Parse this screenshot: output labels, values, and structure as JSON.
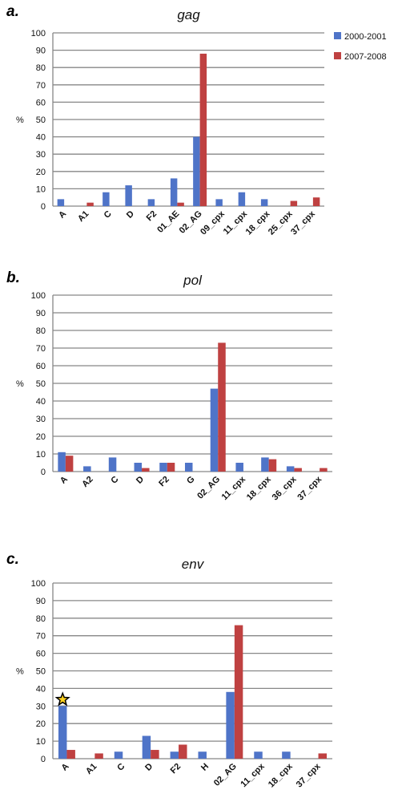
{
  "legend": [
    {
      "name": "2000-2001",
      "color": "#4f74c8"
    },
    {
      "name": "2007-2008",
      "color": "#bf4141"
    }
  ],
  "chart_data": [
    {
      "type": "bar",
      "panel_label": "a.",
      "title": "gag",
      "ylabel": "%",
      "ylim": [
        0,
        100
      ],
      "yticks": [
        0,
        10,
        20,
        30,
        40,
        50,
        60,
        70,
        80,
        90,
        100
      ],
      "grid": true,
      "legend_position": "top-right",
      "categories": [
        "A",
        "A1",
        "C",
        "D",
        "F2",
        "01_AE",
        "02_AG",
        "09_cpx",
        "11_cpx",
        "18_cpx",
        "25_cpx",
        "37_cpx"
      ],
      "series": [
        {
          "name": "2000-2001",
          "values": [
            4,
            0,
            8,
            12,
            4,
            16,
            40,
            4,
            8,
            4,
            0,
            0
          ]
        },
        {
          "name": "2007-2008",
          "values": [
            0,
            2,
            0,
            0,
            0,
            2,
            88,
            0,
            0,
            0,
            3,
            5
          ]
        }
      ]
    },
    {
      "type": "bar",
      "panel_label": "b.",
      "title": "pol",
      "ylabel": "%",
      "ylim": [
        0,
        100
      ],
      "yticks": [
        0,
        10,
        20,
        30,
        40,
        50,
        60,
        70,
        80,
        90,
        100
      ],
      "grid": true,
      "categories": [
        "A",
        "A2",
        "C",
        "D",
        "F2",
        "G",
        "02_AG",
        "11_cpx",
        "18_cpx",
        "36_cpx",
        "37_cpx"
      ],
      "series": [
        {
          "name": "2000-2001",
          "values": [
            11,
            3,
            8,
            5,
            5,
            5,
            47,
            5,
            8,
            3,
            0
          ]
        },
        {
          "name": "2007-2008",
          "values": [
            9,
            0,
            0,
            2,
            5,
            0,
            73,
            0,
            7,
            2,
            2
          ]
        }
      ]
    },
    {
      "type": "bar",
      "panel_label": "c.",
      "title": "env",
      "ylabel": "%",
      "ylim": [
        0,
        100
      ],
      "yticks": [
        0,
        10,
        20,
        30,
        40,
        50,
        60,
        70,
        80,
        90,
        100
      ],
      "grid": true,
      "categories": [
        "A",
        "A1",
        "C",
        "D",
        "F2",
        "H",
        "02_AG",
        "11_cpx",
        "18_cpx",
        "37_cpx"
      ],
      "series": [
        {
          "name": "2000-2001",
          "values": [
            30,
            0,
            4,
            13,
            4,
            4,
            38,
            4,
            4,
            0
          ]
        },
        {
          "name": "2007-2008",
          "values": [
            5,
            3,
            0,
            5,
            8,
            0,
            76,
            0,
            0,
            3
          ]
        }
      ],
      "annotations": [
        {
          "symbol": "star",
          "category": "A",
          "series": "2000-2001"
        }
      ]
    }
  ]
}
